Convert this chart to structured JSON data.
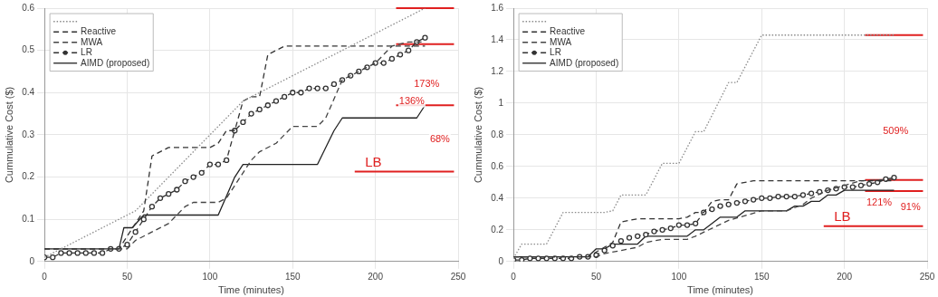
{
  "chart_data": [
    {
      "type": "line",
      "xlabel": "Time (minutes)",
      "ylabel": "Cummulative Cost ($)",
      "xlim": [
        0,
        250
      ],
      "xticks": [
        0,
        50,
        100,
        150,
        200,
        250
      ],
      "ylim": [
        0,
        0.6
      ],
      "yticks": [
        0,
        0.1,
        0.2,
        0.3,
        0.4,
        0.5,
        0.6
      ],
      "grid": true,
      "legend": "top left",
      "marker": "none",
      "series": [
        {
          "color": "#8a8a8a",
          "line_style": "dotted",
          "x": [
            0,
            55,
            120,
            230
          ],
          "values": [
            0.01,
            0.12,
            0.38,
            0.6
          ]
        },
        {
          "name": "Reactive",
          "color": "#333333",
          "line_style": "dashed",
          "x": [
            0,
            45,
            55,
            60,
            65,
            75,
            100,
            105,
            110,
            115,
            120,
            125,
            130,
            135,
            145,
            230
          ],
          "values": [
            0.03,
            0.03,
            0.09,
            0.12,
            0.25,
            0.27,
            0.27,
            0.28,
            0.31,
            0.31,
            0.38,
            0.39,
            0.39,
            0.49,
            0.51,
            0.51
          ]
        },
        {
          "name": "MWA",
          "color": "#444444",
          "line_style": "dashed",
          "x": [
            0,
            50,
            55,
            65,
            75,
            80,
            85,
            90,
            105,
            110,
            115,
            120,
            125,
            130,
            140,
            150,
            165,
            170,
            180,
            190,
            200,
            210,
            220,
            230
          ],
          "values": [
            0.03,
            0.03,
            0.05,
            0.07,
            0.09,
            0.11,
            0.13,
            0.14,
            0.14,
            0.15,
            0.18,
            0.21,
            0.24,
            0.26,
            0.28,
            0.32,
            0.32,
            0.34,
            0.43,
            0.45,
            0.47,
            0.51,
            0.52,
            0.52
          ]
        },
        {
          "name": "LR",
          "color": "#333333",
          "line_style": "dashed",
          "marker": "circle",
          "x": [
            0,
            5,
            10,
            15,
            20,
            25,
            30,
            35,
            40,
            45,
            50,
            55,
            60,
            65,
            70,
            75,
            80,
            85,
            90,
            95,
            100,
            105,
            110,
            115,
            120,
            125,
            130,
            135,
            140,
            145,
            150,
            155,
            160,
            165,
            170,
            175,
            180,
            185,
            190,
            195,
            200,
            205,
            210,
            215,
            220,
            225,
            230
          ],
          "values": [
            0.01,
            0.01,
            0.02,
            0.02,
            0.02,
            0.02,
            0.02,
            0.02,
            0.03,
            0.03,
            0.04,
            0.07,
            0.1,
            0.13,
            0.15,
            0.16,
            0.17,
            0.19,
            0.2,
            0.21,
            0.23,
            0.23,
            0.24,
            0.31,
            0.33,
            0.35,
            0.36,
            0.37,
            0.38,
            0.39,
            0.4,
            0.4,
            0.41,
            0.41,
            0.41,
            0.42,
            0.43,
            0.44,
            0.45,
            0.46,
            0.47,
            0.47,
            0.48,
            0.49,
            0.5,
            0.52,
            0.53
          ]
        },
        {
          "name": "AIMD (proposed)",
          "color": "#222222",
          "line_style": "solid",
          "x": [
            0,
            45,
            48,
            53,
            60,
            105,
            115,
            120,
            165,
            175,
            180,
            225,
            230
          ],
          "values": [
            0.03,
            0.03,
            0.08,
            0.08,
            0.11,
            0.11,
            0.2,
            0.23,
            0.23,
            0.31,
            0.34,
            0.34,
            0.37
          ]
        }
      ],
      "ref_lines": [
        {
          "axis": "y",
          "value": 0.213,
          "label": "LB",
          "color": "#e02020"
        },
        {
          "axis": "y",
          "value": 0.6,
          "color": "#e02020"
        },
        {
          "axis": "y",
          "value": 0.515,
          "color": "#e02020"
        },
        {
          "axis": "y",
          "value": 0.37,
          "color": "#e02020"
        }
      ],
      "annotations": [
        {
          "text": "173%",
          "x": 231,
          "y": 0.42
        },
        {
          "text": "136%",
          "x": 222,
          "y": 0.38
        },
        {
          "text": "68%",
          "x": 239,
          "y": 0.29
        }
      ]
    },
    {
      "type": "line",
      "xlabel": "Time (minutes)",
      "ylabel": "Cummulative Cost ($)",
      "xlim": [
        0,
        250
      ],
      "xticks": [
        0,
        50,
        100,
        150,
        200,
        250
      ],
      "ylim": [
        0,
        1.6
      ],
      "yticks": [
        0,
        0.2,
        0.4,
        0.6,
        0.8,
        1,
        1.2,
        1.4,
        1.6
      ],
      "grid": true,
      "legend": "top left",
      "marker": "none",
      "series": [
        {
          "color": "#8a8a8a",
          "line_style": "dotted",
          "x": [
            0,
            5,
            20,
            30,
            55,
            60,
            65,
            80,
            90,
            100,
            110,
            115,
            130,
            135,
            150,
            230
          ],
          "values": [
            0.02,
            0.11,
            0.11,
            0.31,
            0.31,
            0.32,
            0.42,
            0.42,
            0.62,
            0.62,
            0.82,
            0.82,
            1.13,
            1.13,
            1.43,
            1.43
          ]
        },
        {
          "name": "Reactive",
          "color": "#333333",
          "line_style": "dashed",
          "x": [
            0,
            45,
            55,
            60,
            65,
            75,
            100,
            105,
            110,
            115,
            120,
            125,
            130,
            135,
            145,
            230
          ],
          "values": [
            0.03,
            0.03,
            0.09,
            0.12,
            0.25,
            0.27,
            0.27,
            0.28,
            0.31,
            0.31,
            0.38,
            0.39,
            0.39,
            0.49,
            0.51,
            0.51
          ]
        },
        {
          "name": "MWA",
          "color": "#444444",
          "line_style": "dashed",
          "x": [
            0,
            50,
            55,
            75,
            80,
            90,
            105,
            110,
            120,
            130,
            140,
            150,
            165,
            175,
            180,
            190,
            200,
            210,
            230
          ],
          "values": [
            0.03,
            0.03,
            0.05,
            0.09,
            0.12,
            0.14,
            0.14,
            0.16,
            0.21,
            0.26,
            0.29,
            0.32,
            0.32,
            0.36,
            0.4,
            0.45,
            0.48,
            0.51,
            0.52
          ]
        },
        {
          "name": "LR",
          "color": "#333333",
          "line_style": "dashed",
          "marker": "circle",
          "x": [
            0,
            5,
            10,
            15,
            20,
            25,
            30,
            35,
            40,
            45,
            50,
            55,
            60,
            65,
            70,
            75,
            80,
            85,
            90,
            95,
            100,
            105,
            110,
            115,
            120,
            125,
            130,
            135,
            140,
            145,
            150,
            155,
            160,
            165,
            170,
            175,
            180,
            185,
            190,
            195,
            200,
            205,
            210,
            215,
            220,
            225,
            230
          ],
          "values": [
            0.01,
            0.01,
            0.02,
            0.02,
            0.02,
            0.02,
            0.02,
            0.02,
            0.03,
            0.03,
            0.04,
            0.07,
            0.1,
            0.13,
            0.15,
            0.16,
            0.17,
            0.19,
            0.2,
            0.21,
            0.23,
            0.23,
            0.24,
            0.31,
            0.33,
            0.35,
            0.36,
            0.37,
            0.38,
            0.39,
            0.4,
            0.4,
            0.41,
            0.41,
            0.41,
            0.42,
            0.43,
            0.44,
            0.45,
            0.46,
            0.47,
            0.47,
            0.48,
            0.49,
            0.5,
            0.52,
            0.53
          ]
        },
        {
          "name": "AIMD (proposed)",
          "color": "#222222",
          "line_style": "solid",
          "x": [
            0,
            45,
            50,
            55,
            60,
            75,
            80,
            105,
            110,
            115,
            125,
            135,
            140,
            165,
            170,
            175,
            180,
            185,
            190,
            195,
            200,
            230
          ],
          "values": [
            0.03,
            0.03,
            0.08,
            0.08,
            0.11,
            0.11,
            0.16,
            0.16,
            0.2,
            0.2,
            0.28,
            0.28,
            0.32,
            0.32,
            0.35,
            0.35,
            0.38,
            0.38,
            0.42,
            0.42,
            0.45,
            0.45
          ]
        }
      ],
      "ref_lines": [
        {
          "axis": "y",
          "value": 0.223,
          "label": "LB",
          "color": "#e02020"
        },
        {
          "axis": "y",
          "value": 1.43,
          "color": "#e02020"
        },
        {
          "axis": "y",
          "value": 0.515,
          "color": "#e02020"
        },
        {
          "axis": "y",
          "value": 0.445,
          "color": "#e02020"
        }
      ],
      "annotations": [
        {
          "text": "509%",
          "x": 231,
          "y": 0.82
        },
        {
          "text": "121%",
          "x": 221,
          "y": 0.37
        },
        {
          "text": "91%",
          "x": 240,
          "y": 0.34
        }
      ]
    }
  ]
}
